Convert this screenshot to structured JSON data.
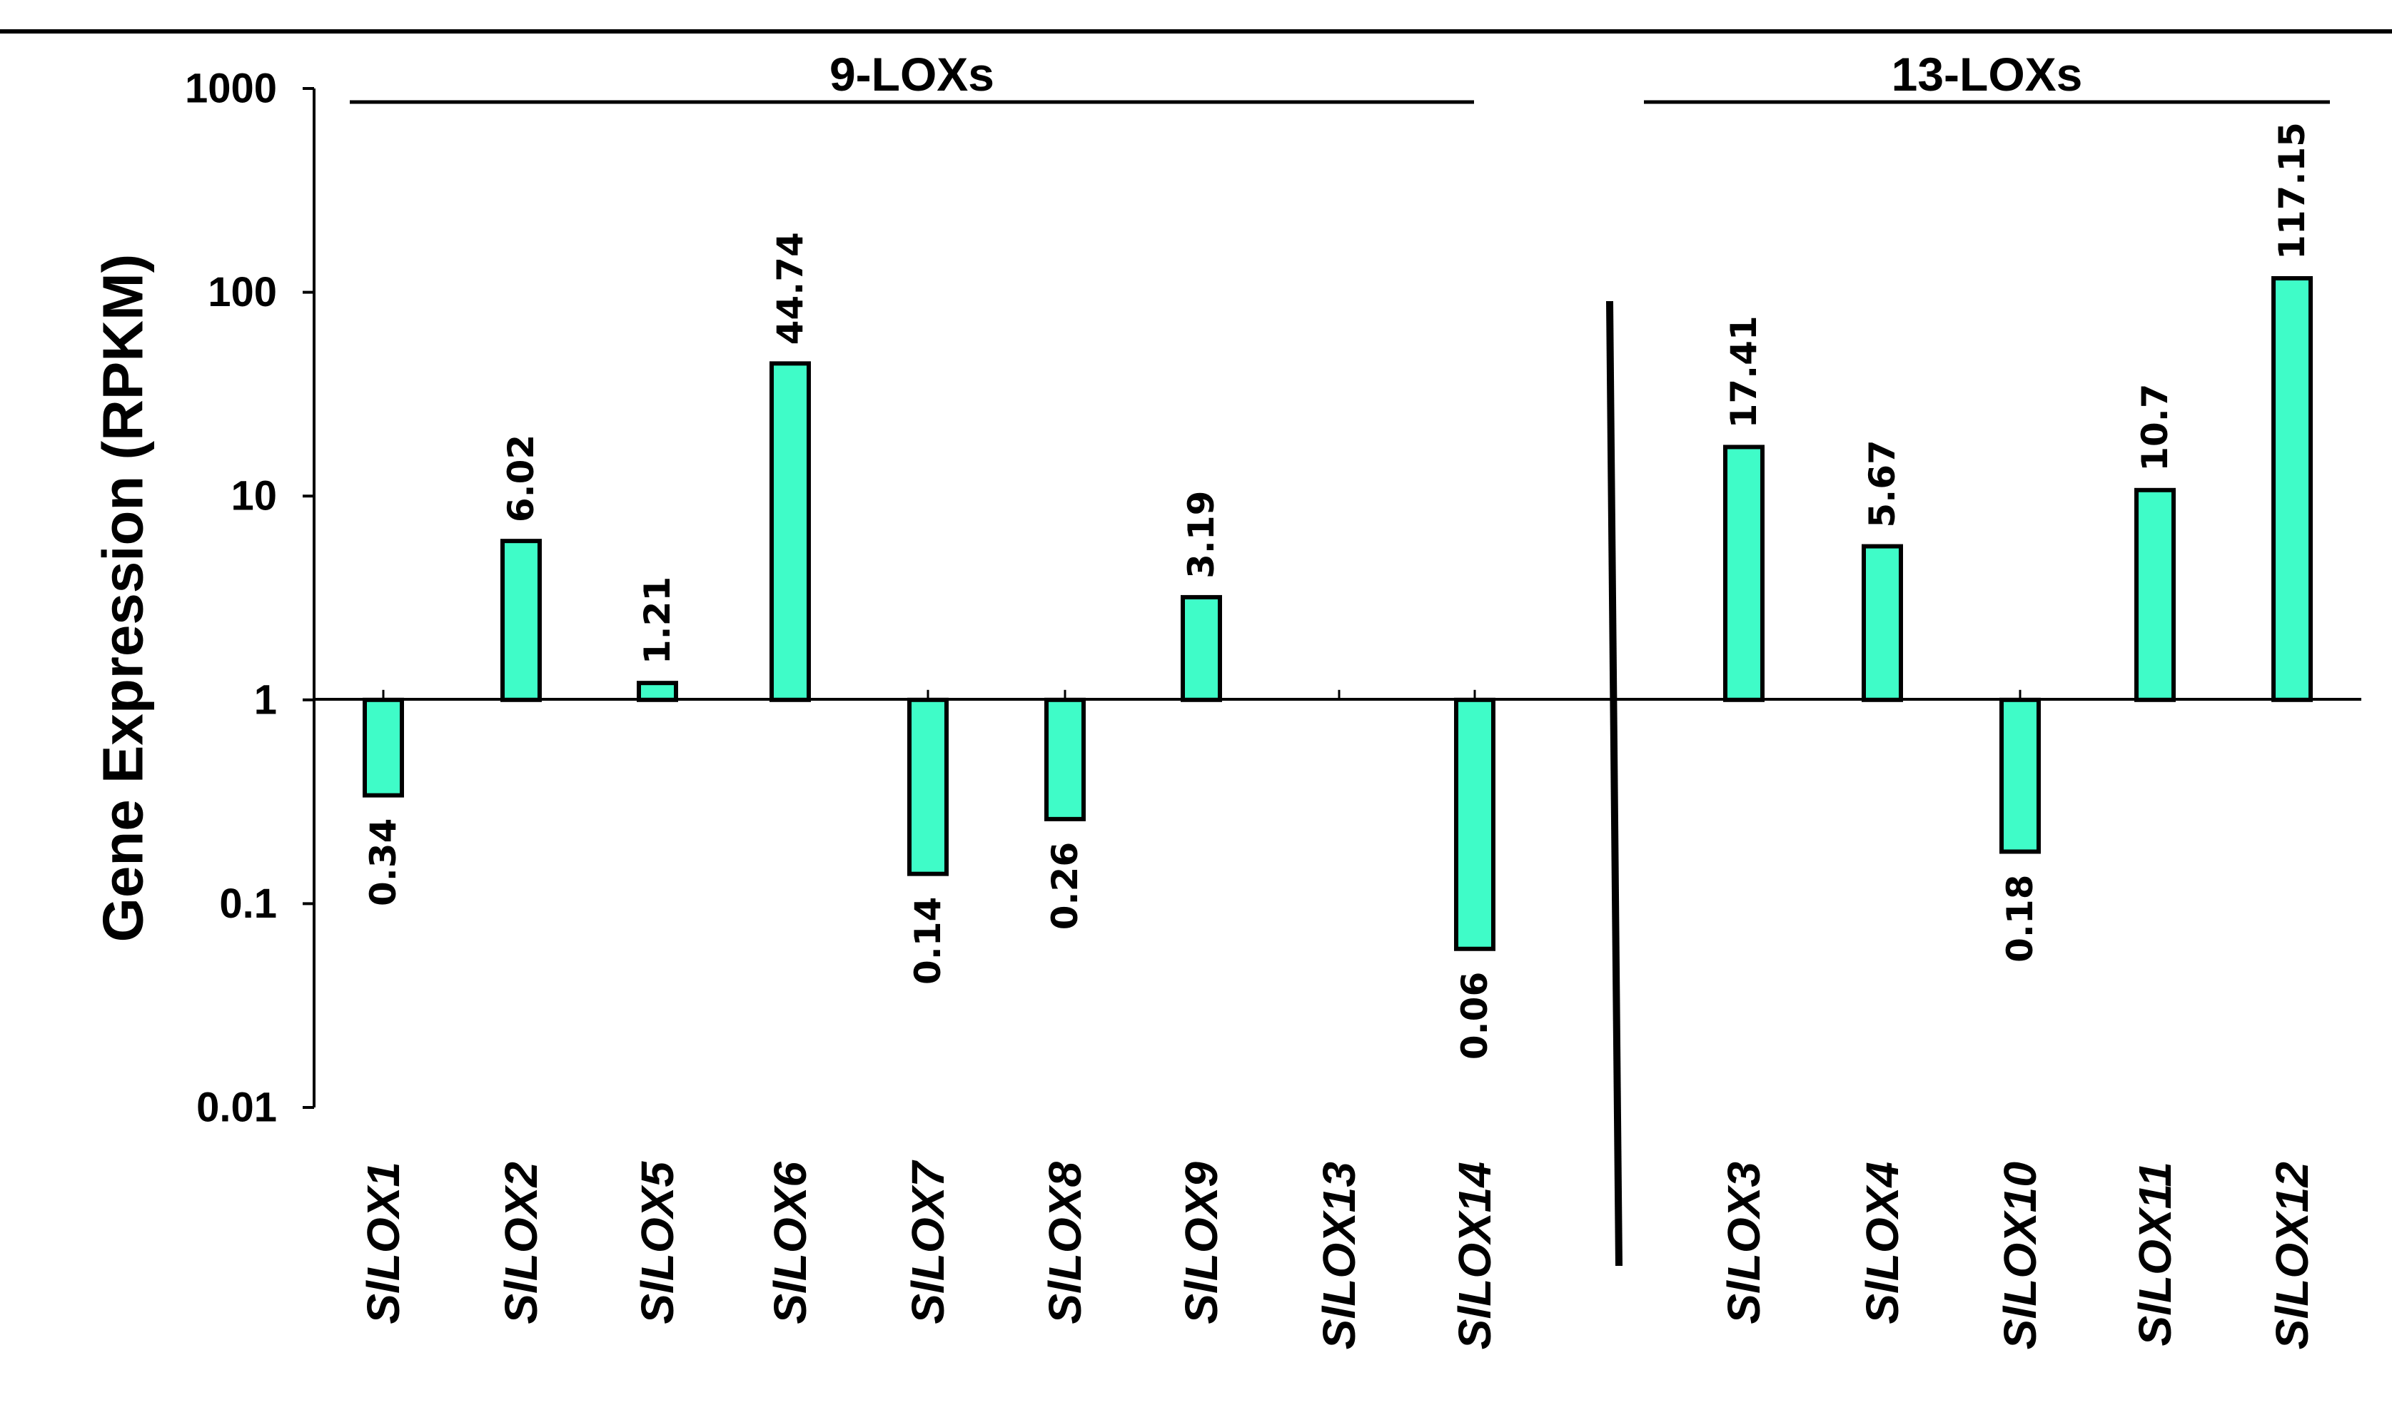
{
  "chart_data": {
    "type": "bar",
    "yscale": "log",
    "baseline": 1,
    "ylabel": "Gene Expression (RPKM)",
    "ylim": [
      0.01,
      1000
    ],
    "yticks": [
      {
        "value": 1000,
        "label": "1000"
      },
      {
        "value": 100,
        "label": "100"
      },
      {
        "value": 10,
        "label": "10"
      },
      {
        "value": 1,
        "label": "1"
      },
      {
        "value": 0.1,
        "label": "0.1"
      },
      {
        "value": 0.01,
        "label": "0.01"
      }
    ],
    "groups": [
      {
        "label": "9-LOXs",
        "categories": [
          "SlLOX1",
          "SlLOX2",
          "SlLOX5",
          "SlLOX6",
          "SlLOX7",
          "SlLOX8",
          "SlLOX9",
          "SlLOX13",
          "SlLOX14"
        ]
      },
      {
        "label": "13-LOXs",
        "categories": [
          "SlLOX3",
          "SlLOX4",
          "SlLOX10",
          "SlLOX11",
          "SlLOX12"
        ]
      }
    ],
    "bars": [
      {
        "category": "SlLOX1",
        "value": 0.34,
        "label": "0.34"
      },
      {
        "category": "SlLOX2",
        "value": 6.02,
        "label": "6.02"
      },
      {
        "category": "SlLOX5",
        "value": 1.21,
        "label": "1.21"
      },
      {
        "category": "SlLOX6",
        "value": 44.74,
        "label": "44.74"
      },
      {
        "category": "SlLOX7",
        "value": 0.14,
        "label": "0.14"
      },
      {
        "category": "SlLOX8",
        "value": 0.26,
        "label": "0.26"
      },
      {
        "category": "SlLOX9",
        "value": 3.19,
        "label": "3.19"
      },
      {
        "category": "SlLOX13",
        "value": null,
        "label": ""
      },
      {
        "category": "SlLOX14",
        "value": 0.06,
        "label": "0.06"
      },
      {
        "category": "SlLOX3",
        "value": 17.41,
        "label": "17.41"
      },
      {
        "category": "SlLOX4",
        "value": 5.67,
        "label": "5.67"
      },
      {
        "category": "SlLOX10",
        "value": 0.18,
        "label": "0.18"
      },
      {
        "category": "SlLOX11",
        "value": 10.7,
        "label": "10.7"
      },
      {
        "category": "SlLOX12",
        "value": 117.15,
        "label": "117.15"
      }
    ],
    "colors": {
      "bar_fill": "#3ffcc8",
      "bar_stroke": "#000000",
      "axis": "#000000"
    }
  }
}
